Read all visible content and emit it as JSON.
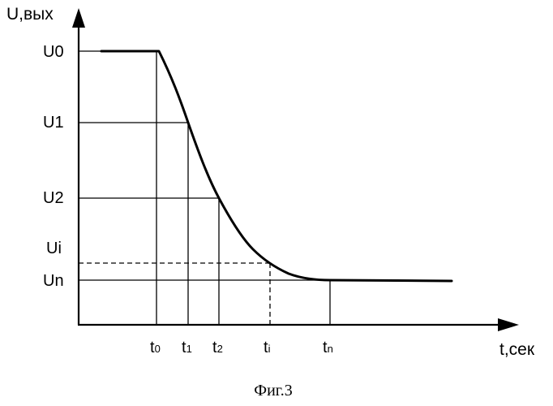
{
  "y_axis_label": "U,вых",
  "x_axis_label": "t,сек",
  "y_levels": [
    {
      "label": "U0"
    },
    {
      "label": "U1"
    },
    {
      "label": "U2"
    },
    {
      "label": "Ui",
      "dashed": true
    },
    {
      "label": "Un"
    }
  ],
  "x_marks": [
    {
      "base": "t",
      "sub": "0"
    },
    {
      "base": "t",
      "sub": "1"
    },
    {
      "base": "t",
      "sub": "2"
    },
    {
      "base": "t",
      "sub": "i",
      "dashed": true
    },
    {
      "base": "t",
      "sub": "n"
    }
  ],
  "caption": "Фиг.3"
}
